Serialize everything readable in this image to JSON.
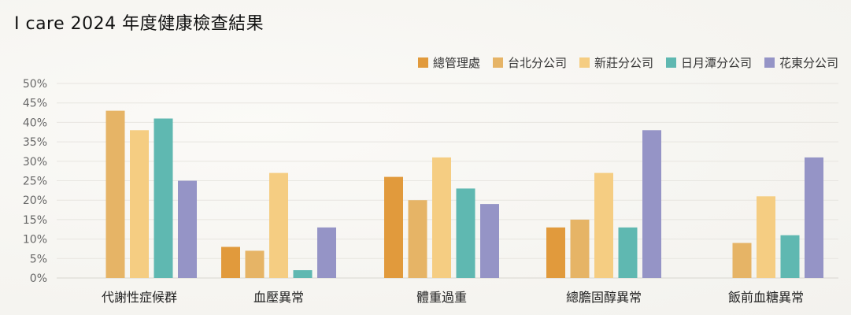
{
  "title": "I care 2024 年度健康檢查結果",
  "chart_data": {
    "type": "bar",
    "title": "I care 2024 年度健康檢查結果",
    "categories": [
      "代謝性症候群",
      "血壓異常",
      "體重過重",
      "總膽固醇異常",
      "飯前血糖異常"
    ],
    "series": [
      {
        "name": "總管理處",
        "color": "#e19a3c",
        "values": [
          null,
          8,
          26,
          13,
          null
        ]
      },
      {
        "name": "台北分公司",
        "color": "#e6b466",
        "values": [
          43,
          7,
          20,
          15,
          9
        ]
      },
      {
        "name": "新莊分公司",
        "color": "#f5cd82",
        "values": [
          38,
          27,
          31,
          27,
          21
        ]
      },
      {
        "name": "日月潭分公司",
        "color": "#5fb8b1",
        "values": [
          41,
          2,
          23,
          13,
          11
        ]
      },
      {
        "name": "花東分公司",
        "color": "#9594c6",
        "values": [
          25,
          13,
          19,
          38,
          31
        ]
      }
    ],
    "ylim": [
      0,
      50
    ],
    "yticks": [
      "0%",
      "5%",
      "10%",
      "15%",
      "20%",
      "25%",
      "30%",
      "35%",
      "40%",
      "45%",
      "50%"
    ],
    "xlabel": "",
    "ylabel": "",
    "grid": true,
    "legend_position": "top-right"
  }
}
